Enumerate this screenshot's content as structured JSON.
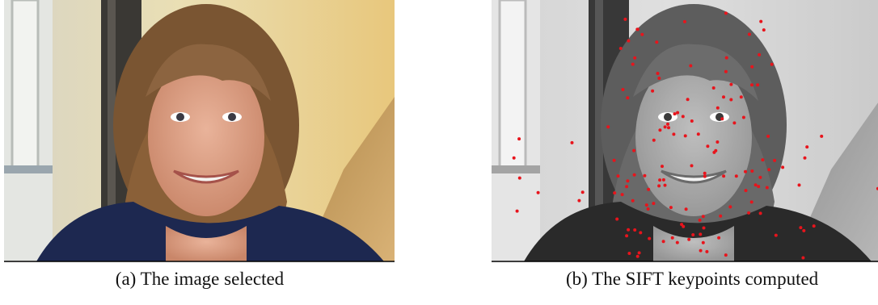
{
  "figure": {
    "subfigures": [
      {
        "caption": "(a) The image selected"
      },
      {
        "caption": "(b) The SIFT keypoints computed"
      }
    ]
  }
}
